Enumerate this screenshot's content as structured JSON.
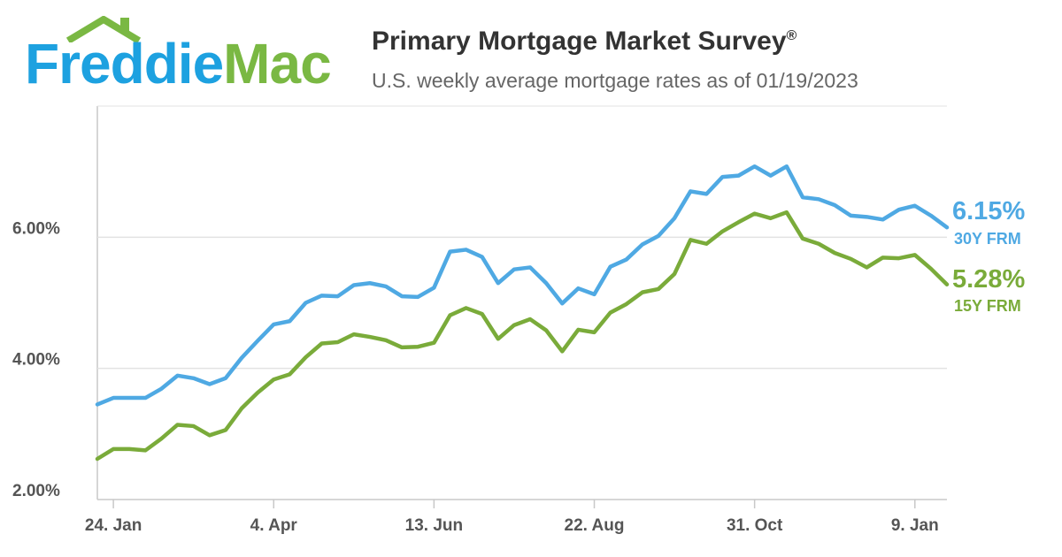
{
  "header": {
    "logo_word1": "Freddie",
    "logo_word2": "Mac",
    "title": "Primary Mortgage Market Survey",
    "title_mark": "®",
    "subtitle": "U.S. weekly average mortgage rates as of 01/19/2023"
  },
  "colors": {
    "frm30": "#4fa9e3",
    "frm15": "#7aab3a",
    "grid": "#e3e3e3",
    "axis": "#c8c8c8",
    "text": "#555555"
  },
  "chart_data": {
    "type": "line",
    "title": "Primary Mortgage Market Survey",
    "subtitle": "U.S. weekly average mortgage rates as of 01/19/2023",
    "x_tick_labels": [
      "24. Jan",
      "4. Apr",
      "13. Jun",
      "22. Aug",
      "31. Oct",
      "9. Jan"
    ],
    "x_tick_weeks": [
      1,
      11,
      21,
      31,
      41,
      51
    ],
    "y_ticks": [
      2,
      4,
      6
    ],
    "y_tick_labels": [
      "2.00%",
      "4.00%",
      "6.00%"
    ],
    "ylim": [
      2,
      8
    ],
    "xlim": [
      0,
      53
    ],
    "grid": true,
    "series": [
      {
        "name": "30Y FRM",
        "end_label": "6.15%",
        "values": [
          3.45,
          3.55,
          3.55,
          3.55,
          3.69,
          3.89,
          3.85,
          3.76,
          3.85,
          4.16,
          4.42,
          4.67,
          4.72,
          5.0,
          5.11,
          5.1,
          5.27,
          5.3,
          5.25,
          5.1,
          5.09,
          5.23,
          5.78,
          5.81,
          5.7,
          5.3,
          5.51,
          5.54,
          5.3,
          4.99,
          5.22,
          5.13,
          5.55,
          5.66,
          5.89,
          6.02,
          6.29,
          6.7,
          6.66,
          6.92,
          6.94,
          7.08,
          6.94,
          7.08,
          6.61,
          6.58,
          6.49,
          6.33,
          6.31,
          6.27,
          6.42,
          6.48,
          6.33,
          6.15
        ]
      },
      {
        "name": "15Y FRM",
        "end_label": "5.28%",
        "values": [
          2.62,
          2.77,
          2.77,
          2.75,
          2.93,
          3.14,
          3.12,
          2.98,
          3.06,
          3.39,
          3.63,
          3.83,
          3.91,
          4.17,
          4.38,
          4.4,
          4.52,
          4.48,
          4.43,
          4.32,
          4.33,
          4.39,
          4.81,
          4.92,
          4.83,
          4.45,
          4.66,
          4.75,
          4.58,
          4.26,
          4.59,
          4.55,
          4.85,
          4.98,
          5.16,
          5.21,
          5.44,
          5.96,
          5.9,
          6.09,
          6.23,
          6.36,
          6.29,
          6.38,
          5.98,
          5.9,
          5.76,
          5.67,
          5.54,
          5.69,
          5.68,
          5.73,
          5.52,
          5.28
        ]
      }
    ]
  }
}
